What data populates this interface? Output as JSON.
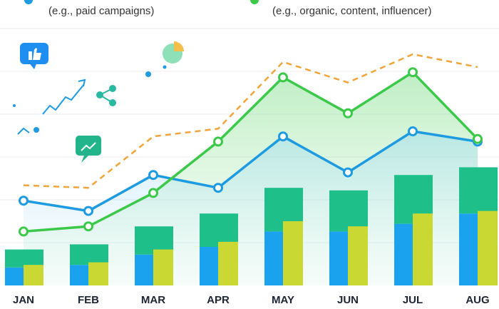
{
  "chart_data": {
    "type": "combo",
    "categories": [
      "JAN",
      "FEB",
      "MAR",
      "APR",
      "MAY",
      "JUN",
      "JUL",
      "AUG"
    ],
    "ylim": [
      0,
      100
    ],
    "series": [
      {
        "name": "(e.g., paid campaigns)",
        "type": "line",
        "color": "#1e9be0",
        "values": [
          33,
          29,
          43,
          38,
          58,
          44,
          60,
          56
        ]
      },
      {
        "name": "(e.g., organic, content, influencer)",
        "type": "line",
        "color": "#3cc94a",
        "values": [
          21,
          23,
          36,
          56,
          81,
          67,
          83,
          57
        ]
      },
      {
        "type": "dashed-line",
        "color": "#f0a43a",
        "values": [
          39,
          38,
          58,
          61,
          87,
          79,
          90,
          85
        ]
      },
      {
        "type": "stacked-bar",
        "color": "#1aa2ee",
        "values": [
          7,
          8,
          12,
          15,
          21,
          21,
          24,
          28
        ]
      },
      {
        "type": "stacked-bar",
        "color": "#1fbf8a",
        "values": [
          7,
          8,
          11,
          13,
          17,
          16,
          19,
          18
        ]
      },
      {
        "type": "bar",
        "color": "#c9d832",
        "values": [
          8,
          9,
          14,
          17,
          25,
          23,
          28,
          29
        ]
      }
    ]
  }
}
